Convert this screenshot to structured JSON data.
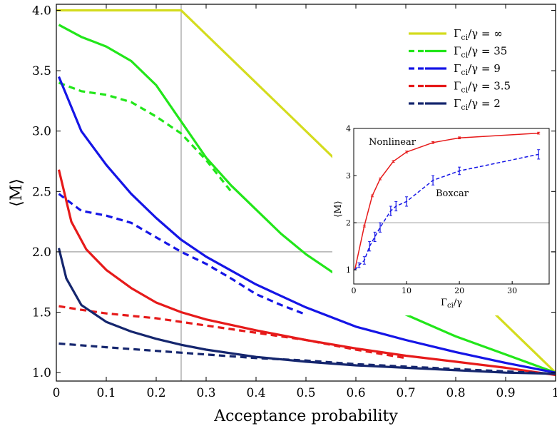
{
  "chart_data": [
    {
      "type": "line",
      "title": "",
      "xlabel": "Acceptance probability",
      "ylabel": "⟨M⟩",
      "xlim": [
        0,
        1
      ],
      "ylim": [
        0.93,
        4.05
      ],
      "xticks": [
        "0",
        "0.1",
        "0.2",
        "0.3",
        "0.4",
        "0.5",
        "0.6",
        "0.7",
        "0.8",
        "0.9",
        "1"
      ],
      "yticks": [
        "1.0",
        "1.5",
        "2.0",
        "2.5",
        "3.0",
        "3.5",
        "4.0"
      ],
      "reference_lines": {
        "x": 0.25,
        "y": 2.0
      },
      "grid": false,
      "legend_position": "top-right",
      "series": [
        {
          "name": "Γci/γ = ∞",
          "color": "#d4dc1e",
          "dash": false,
          "x": [
            0.0,
            0.25,
            1.0
          ],
          "y": [
            4.0,
            4.0,
            1.0
          ]
        },
        {
          "name": "Γci/γ = 35",
          "color": "#22e61a",
          "dash": false,
          "x": [
            0.005,
            0.05,
            0.1,
            0.15,
            0.2,
            0.25,
            0.3,
            0.35,
            0.4,
            0.45,
            0.5,
            0.6,
            0.7,
            0.8,
            0.9,
            1.0
          ],
          "y": [
            3.88,
            3.78,
            3.7,
            3.58,
            3.38,
            3.08,
            2.78,
            2.55,
            2.35,
            2.15,
            1.98,
            1.7,
            1.48,
            1.3,
            1.15,
            1.0
          ]
        },
        {
          "name": "",
          "color": "#22e61a",
          "dash": true,
          "x": [
            0.005,
            0.05,
            0.1,
            0.15,
            0.2,
            0.25,
            0.3,
            0.35
          ],
          "y": [
            3.4,
            3.33,
            3.3,
            3.24,
            3.12,
            2.98,
            2.76,
            2.5
          ]
        },
        {
          "name": "Γci/γ = 9",
          "color": "#1515e6",
          "dash": false,
          "x": [
            0.005,
            0.05,
            0.1,
            0.15,
            0.2,
            0.25,
            0.3,
            0.4,
            0.5,
            0.6,
            0.7,
            0.8,
            0.9,
            1.0
          ],
          "y": [
            3.45,
            3.0,
            2.72,
            2.48,
            2.28,
            2.1,
            1.96,
            1.73,
            1.54,
            1.38,
            1.27,
            1.17,
            1.08,
            1.0
          ]
        },
        {
          "name": "",
          "color": "#1515e6",
          "dash": true,
          "x": [
            0.005,
            0.05,
            0.1,
            0.15,
            0.2,
            0.25,
            0.3,
            0.35,
            0.4,
            0.45,
            0.5
          ],
          "y": [
            2.48,
            2.34,
            2.3,
            2.24,
            2.12,
            2.0,
            1.9,
            1.78,
            1.65,
            1.56,
            1.48
          ]
        },
        {
          "name": "Γci/γ = 3.5",
          "color": "#e61a1a",
          "dash": false,
          "x": [
            0.005,
            0.03,
            0.06,
            0.1,
            0.15,
            0.2,
            0.25,
            0.3,
            0.4,
            0.5,
            0.6,
            0.7,
            0.8,
            0.9,
            1.0
          ],
          "y": [
            2.68,
            2.25,
            2.02,
            1.85,
            1.7,
            1.58,
            1.5,
            1.44,
            1.35,
            1.27,
            1.2,
            1.14,
            1.09,
            1.04,
            0.98
          ]
        },
        {
          "name": "",
          "color": "#e61a1a",
          "dash": true,
          "x": [
            0.005,
            0.05,
            0.1,
            0.2,
            0.3,
            0.4,
            0.5,
            0.6,
            0.7
          ],
          "y": [
            1.55,
            1.52,
            1.49,
            1.45,
            1.39,
            1.33,
            1.27,
            1.19,
            1.12
          ]
        },
        {
          "name": "Γci/γ = 2",
          "color": "#15266e",
          "dash": false,
          "x": [
            0.005,
            0.02,
            0.05,
            0.1,
            0.15,
            0.2,
            0.25,
            0.3,
            0.4,
            0.5,
            0.6,
            0.7,
            0.8,
            0.9,
            1.0
          ],
          "y": [
            2.03,
            1.78,
            1.56,
            1.42,
            1.34,
            1.28,
            1.23,
            1.19,
            1.13,
            1.09,
            1.06,
            1.04,
            1.02,
            1.0,
            0.99
          ]
        },
        {
          "name": "",
          "color": "#15266e",
          "dash": true,
          "x": [
            0.005,
            0.1,
            0.2,
            0.3,
            0.4,
            0.5,
            0.6,
            0.7,
            0.8,
            0.9,
            1.0
          ],
          "y": [
            1.24,
            1.21,
            1.18,
            1.15,
            1.12,
            1.1,
            1.07,
            1.05,
            1.03,
            1.01,
            0.99
          ]
        }
      ]
    },
    {
      "type": "line",
      "title": "",
      "xlabel": "Γci/γ",
      "ylabel": "⟨M⟩",
      "xlim": [
        0,
        37
      ],
      "ylim": [
        1,
        4
      ],
      "xticks": [
        "0",
        "10",
        "20",
        "30"
      ],
      "yticks": [
        "1",
        "2",
        "3",
        "4"
      ],
      "reference_lines": {
        "y": 2.0
      },
      "grid": false,
      "annotations": [
        "Nonlinear",
        "Boxcar"
      ],
      "series": [
        {
          "name": "Nonlinear",
          "color": "#e61a1a",
          "dash": false,
          "x": [
            0.2,
            2,
            3.5,
            5,
            7.5,
            10,
            15,
            20,
            35
          ],
          "y": [
            1.0,
            1.93,
            2.57,
            2.93,
            3.3,
            3.5,
            3.7,
            3.8,
            3.9
          ],
          "err": [
            0,
            0.02,
            0.02,
            0.02,
            0.02,
            0.02,
            0.02,
            0.02,
            0.02
          ]
        },
        {
          "name": "Boxcar",
          "color": "#1515e6",
          "dash": true,
          "x": [
            0.2,
            1,
            2,
            3,
            4,
            5,
            7,
            8,
            10,
            15,
            20,
            35
          ],
          "y": [
            1.0,
            1.1,
            1.2,
            1.5,
            1.7,
            1.9,
            2.25,
            2.35,
            2.45,
            2.9,
            3.1,
            3.45
          ],
          "err": [
            0,
            0.05,
            0.08,
            0.1,
            0.1,
            0.1,
            0.1,
            0.1,
            0.1,
            0.1,
            0.08,
            0.1
          ]
        }
      ]
    }
  ],
  "legend": [
    {
      "prefix": "Γ",
      "sub": "ci",
      "suffix": "/γ = ∞",
      "color": "#d4dc1e",
      "dash": false
    },
    {
      "prefix": "Γ",
      "sub": "ci",
      "suffix": "/γ = 35",
      "color": "#22e61a",
      "dash": true
    },
    {
      "prefix": "Γ",
      "sub": "ci",
      "suffix": "/γ = 9",
      "color": "#1515e6",
      "dash": true
    },
    {
      "prefix": "Γ",
      "sub": "ci",
      "suffix": "/γ = 3.5",
      "color": "#e61a1a",
      "dash": true
    },
    {
      "prefix": "Γ",
      "sub": "ci",
      "suffix": "/γ = 2",
      "color": "#15266e",
      "dash": true
    }
  ],
  "inset_xlabel_parts": {
    "prefix": "Γ",
    "sub": "ci",
    "suffix": "/γ"
  },
  "inset_annotations": {
    "nonlinear": "Nonlinear",
    "boxcar": "Boxcar"
  }
}
